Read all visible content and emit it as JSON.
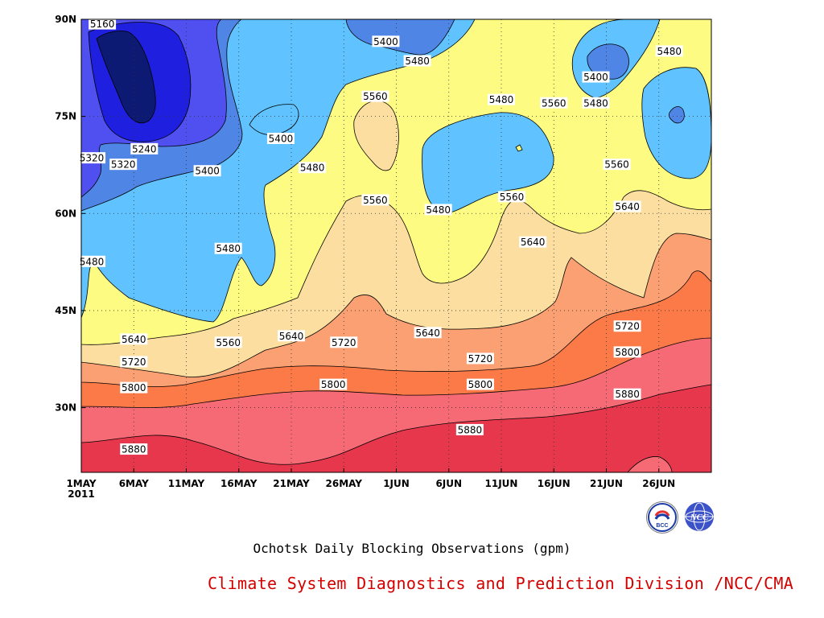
{
  "chart_data": {
    "type": "heatmap",
    "title": "Ochotsk Daily Blocking Observations (gpm)",
    "xlabel": "",
    "ylabel": "",
    "x_ticks": [
      "1MAY",
      "6MAY",
      "11MAY",
      "16MAY",
      "21MAY",
      "26MAY",
      "1JUN",
      "6JUN",
      "11JUN",
      "16JUN",
      "21JUN",
      "26JUN"
    ],
    "x_year": "2011",
    "y_ticks": [
      "90N",
      "75N",
      "60N",
      "45N",
      "30N"
    ],
    "xlim": [
      "2011-05-01",
      "2011-06-30"
    ],
    "ylim": [
      20,
      90
    ],
    "grid": true,
    "contour_levels": [
      5160,
      5240,
      5320,
      5400,
      5480,
      5560,
      5640,
      5720,
      5800,
      5880
    ],
    "level_colors": [
      "#0d1a73",
      "#1f1fe0",
      "#5050f0",
      "#4f86e6",
      "#60c3ff",
      "#fdfb82",
      "#fcdfa0",
      "#fba072",
      "#fb7a48",
      "#f56a75",
      "#e6374c"
    ],
    "contour_labels": [
      {
        "text": "5160",
        "date": "2011-05-03",
        "lat": 89.3
      },
      {
        "text": "5240",
        "date": "2011-05-07",
        "lat": 70.0
      },
      {
        "text": "5320",
        "date": "2011-05-02",
        "lat": 68.6
      },
      {
        "text": "5320",
        "date": "2011-05-05",
        "lat": 67.6
      },
      {
        "text": "5400",
        "date": "2011-05-13",
        "lat": 66.6
      },
      {
        "text": "5400",
        "date": "2011-05-20",
        "lat": 71.6
      },
      {
        "text": "5400",
        "date": "2011-05-30",
        "lat": 86.6
      },
      {
        "text": "5400",
        "date": "2011-06-19",
        "lat": 81.1
      },
      {
        "text": "5480",
        "date": "2011-05-23",
        "lat": 67.1
      },
      {
        "text": "5480",
        "date": "2011-05-15",
        "lat": 54.6
      },
      {
        "text": "5480",
        "date": "2011-05-02",
        "lat": 52.6
      },
      {
        "text": "5480",
        "date": "2011-06-02",
        "lat": 83.6
      },
      {
        "text": "5480",
        "date": "2011-06-10",
        "lat": 77.6
      },
      {
        "text": "5480",
        "date": "2011-06-04",
        "lat": 60.6
      },
      {
        "text": "5480",
        "date": "2011-06-19",
        "lat": 77.1
      },
      {
        "text": "5480",
        "date": "2011-06-26",
        "lat": 85.1
      },
      {
        "text": "5560",
        "date": "2011-05-29",
        "lat": 78.1
      },
      {
        "text": "5560",
        "date": "2011-05-29",
        "lat": 62.1
      },
      {
        "text": "5560",
        "date": "2011-06-15",
        "lat": 77.1
      },
      {
        "text": "5560",
        "date": "2011-06-11",
        "lat": 62.6
      },
      {
        "text": "5560",
        "date": "2011-06-21",
        "lat": 67.6
      },
      {
        "text": "5560",
        "date": "2011-05-15",
        "lat": 40.1
      },
      {
        "text": "5640",
        "date": "2011-05-06",
        "lat": 40.6
      },
      {
        "text": "5640",
        "date": "2011-05-21",
        "lat": 41.1
      },
      {
        "text": "5640",
        "date": "2011-06-03",
        "lat": 41.6
      },
      {
        "text": "5640",
        "date": "2011-06-13",
        "lat": 55.6
      },
      {
        "text": "5640",
        "date": "2011-06-22",
        "lat": 61.1
      },
      {
        "text": "5720",
        "date": "2011-05-06",
        "lat": 37.1
      },
      {
        "text": "5720",
        "date": "2011-05-26",
        "lat": 40.1
      },
      {
        "text": "5720",
        "date": "2011-06-08",
        "lat": 37.6
      },
      {
        "text": "5720",
        "date": "2011-06-22",
        "lat": 42.6
      },
      {
        "text": "5800",
        "date": "2011-05-06",
        "lat": 33.1
      },
      {
        "text": "5800",
        "date": "2011-05-25",
        "lat": 33.6
      },
      {
        "text": "5800",
        "date": "2011-06-08",
        "lat": 33.6
      },
      {
        "text": "5800",
        "date": "2011-06-22",
        "lat": 38.6
      },
      {
        "text": "5880",
        "date": "2011-05-06",
        "lat": 23.6
      },
      {
        "text": "5880",
        "date": "2011-06-07",
        "lat": 26.6
      },
      {
        "text": "5880",
        "date": "2011-06-22",
        "lat": 32.1
      }
    ]
  },
  "footer": {
    "caption": "Ochotsk Daily Blocking Observations (gpm)",
    "credit": "Climate System Diagnostics and Prediction Division /NCC/CMA",
    "logo_left_text": "BCC",
    "logo_right_text": "NCC"
  }
}
